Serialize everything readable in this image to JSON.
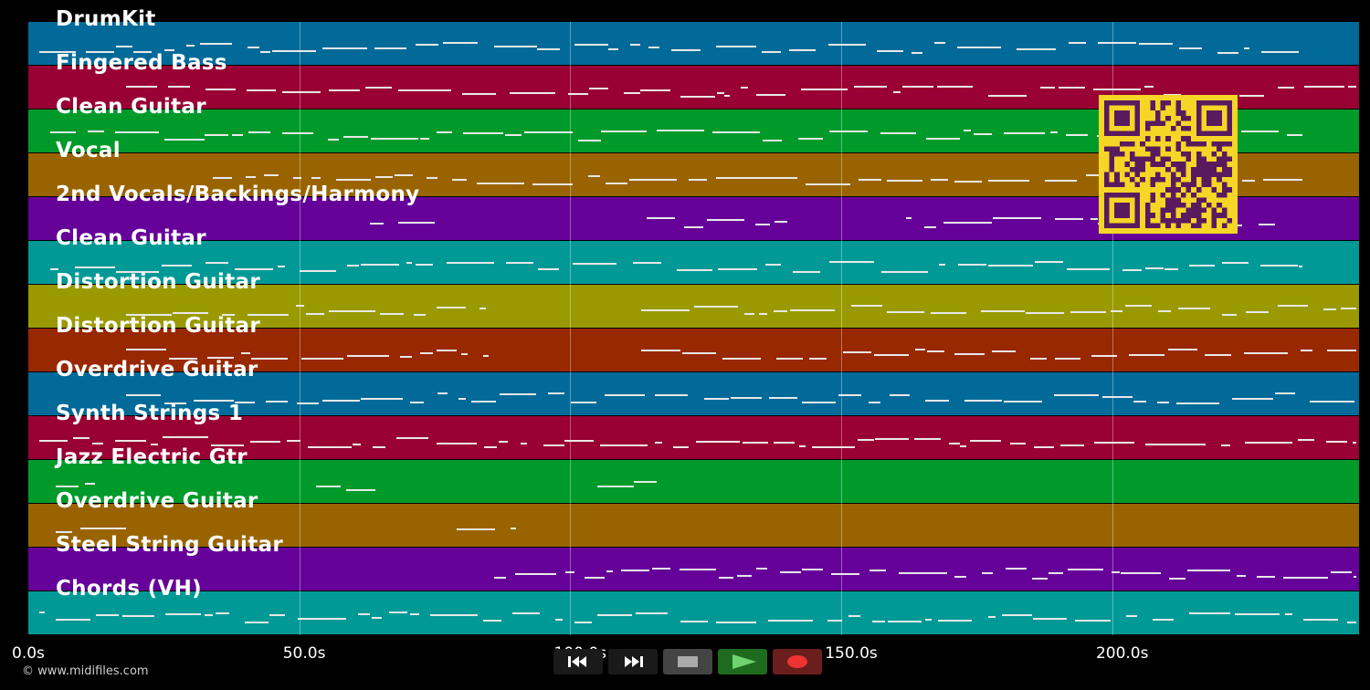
{
  "tracks": [
    {
      "name": "DrumKit",
      "color": "#016a98"
    },
    {
      "name": "Fingered Bass",
      "color": "#990033"
    },
    {
      "name": "Clean Guitar",
      "color": "#009a2b"
    },
    {
      "name": "Vocal",
      "color": "#996400"
    },
    {
      "name": "2nd Vocals/Backings/Harmony",
      "color": "#650199"
    },
    {
      "name": "Clean Guitar",
      "color": "#009996"
    },
    {
      "name": "Distortion Guitar",
      "color": "#9a9a00"
    },
    {
      "name": "Distortion Guitar",
      "color": "#982800"
    },
    {
      "name": "Overdrive Guitar",
      "color": "#016a98"
    },
    {
      "name": "Synth Strings 1",
      "color": "#990033"
    },
    {
      "name": "Jazz Electric Gtr",
      "color": "#009a2b"
    },
    {
      "name": "Overdrive Guitar",
      "color": "#996400"
    },
    {
      "name": "Steel String Guitar",
      "color": "#650199"
    },
    {
      "name": "Chords (VH)",
      "color": "#009996"
    }
  ],
  "timeline": {
    "ticks": [
      {
        "seconds": 0,
        "label": "0.0s"
      },
      {
        "seconds": 50,
        "label": "50.0s"
      },
      {
        "seconds": 100,
        "label": "100.0s"
      },
      {
        "seconds": 150,
        "label": "150.0s"
      },
      {
        "seconds": 200,
        "label": "200.0s"
      }
    ],
    "end_seconds": 245.5
  },
  "copyright": "© www.midifiles.com",
  "transport": {
    "buttons": [
      {
        "name": "rewind-button",
        "icon": "rewind-icon",
        "bg": "#1a1a1a"
      },
      {
        "name": "fast-forward-button",
        "icon": "fast-forward-icon",
        "bg": "#1a1a1a"
      },
      {
        "name": "stop-button",
        "icon": "stop-icon",
        "bg": "#444444"
      },
      {
        "name": "play-button",
        "icon": "play-icon",
        "bg": "#1e6b1e"
      },
      {
        "name": "record-button",
        "icon": "record-icon",
        "bg": "#6b1e1e"
      }
    ]
  },
  "qr": {
    "icon": "qr-code-icon",
    "fg": "#5a1a5e",
    "bg": "#f5d525"
  }
}
